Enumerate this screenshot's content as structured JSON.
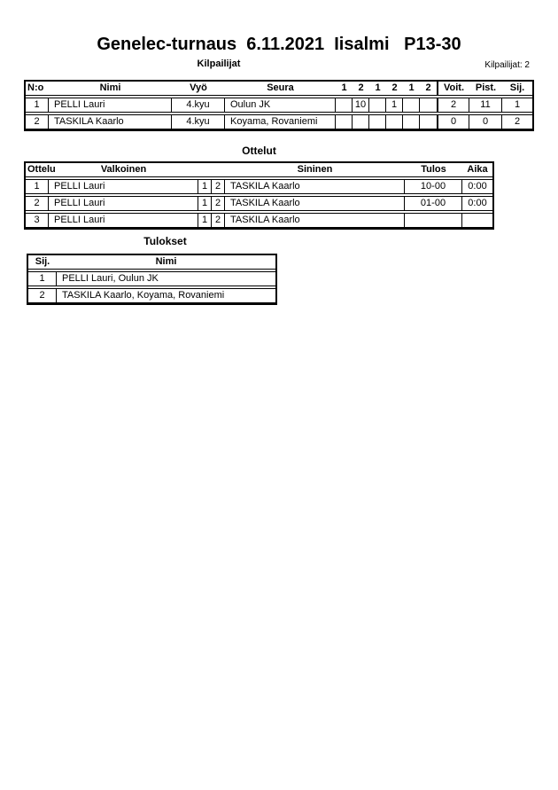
{
  "page": {
    "title": "Genelec-turnaus  6.11.2021  Iisalmi   P13-30",
    "competitors_count": "Kilpailijat: 2"
  },
  "kilpailijat": {
    "heading": "Kilpailijat",
    "headers": {
      "no": "N:o",
      "nimi": "Nimi",
      "vyo": "Vyö",
      "seura": "Seura",
      "s1": "1",
      "s2": "2",
      "s3": "1",
      "s4": "2",
      "s5": "1",
      "s6": "2",
      "voit": "Voit.",
      "pist": "Pist.",
      "sij": "Sij."
    },
    "rows": [
      {
        "no": "1",
        "nimi": "PELLI Lauri",
        "vyo": "4.kyu",
        "seura": "Oulun JK",
        "s1": "",
        "s2": "10",
        "s3": "",
        "s4": "1",
        "s5": "",
        "s6": "",
        "voit": "2",
        "pist": "11",
        "sij": "1"
      },
      {
        "no": "2",
        "nimi": "TASKILA Kaarlo",
        "vyo": "4.kyu",
        "seura": "Koyama, Rovaniemi",
        "s1": "",
        "s2": "",
        "s3": "",
        "s4": "",
        "s5": "",
        "s6": "",
        "voit": "0",
        "pist": "0",
        "sij": "2"
      }
    ]
  },
  "ottelut": {
    "heading": "Ottelut",
    "headers": {
      "ottelu": "Ottelu",
      "valkoinen": "Valkoinen",
      "sininen": "Sininen",
      "tulos": "Tulos",
      "aika": "Aika"
    },
    "rows": [
      {
        "no": "1",
        "valkoinen": "PELLI Lauri",
        "c1": "1",
        "c2": "2",
        "sininen": "TASKILA Kaarlo",
        "tulos": "10-00",
        "aika": "0:00"
      },
      {
        "no": "2",
        "valkoinen": "PELLI Lauri",
        "c1": "1",
        "c2": "2",
        "sininen": "TASKILA Kaarlo",
        "tulos": "01-00",
        "aika": "0:00"
      },
      {
        "no": "3",
        "valkoinen": "PELLI Lauri",
        "c1": "1",
        "c2": "2",
        "sininen": "TASKILA Kaarlo",
        "tulos": "",
        "aika": ""
      }
    ]
  },
  "tulokset": {
    "heading": "Tulokset",
    "headers": {
      "sij": "Sij.",
      "nimi": "Nimi"
    },
    "rows": [
      {
        "sij": "1",
        "nimi": "PELLI Lauri, Oulun JK"
      },
      {
        "sij": "2",
        "nimi": "TASKILA Kaarlo, Koyama, Rovaniemi"
      }
    ]
  },
  "colors": {
    "text": "#000000",
    "border": "#000000",
    "background": "#ffffff"
  }
}
